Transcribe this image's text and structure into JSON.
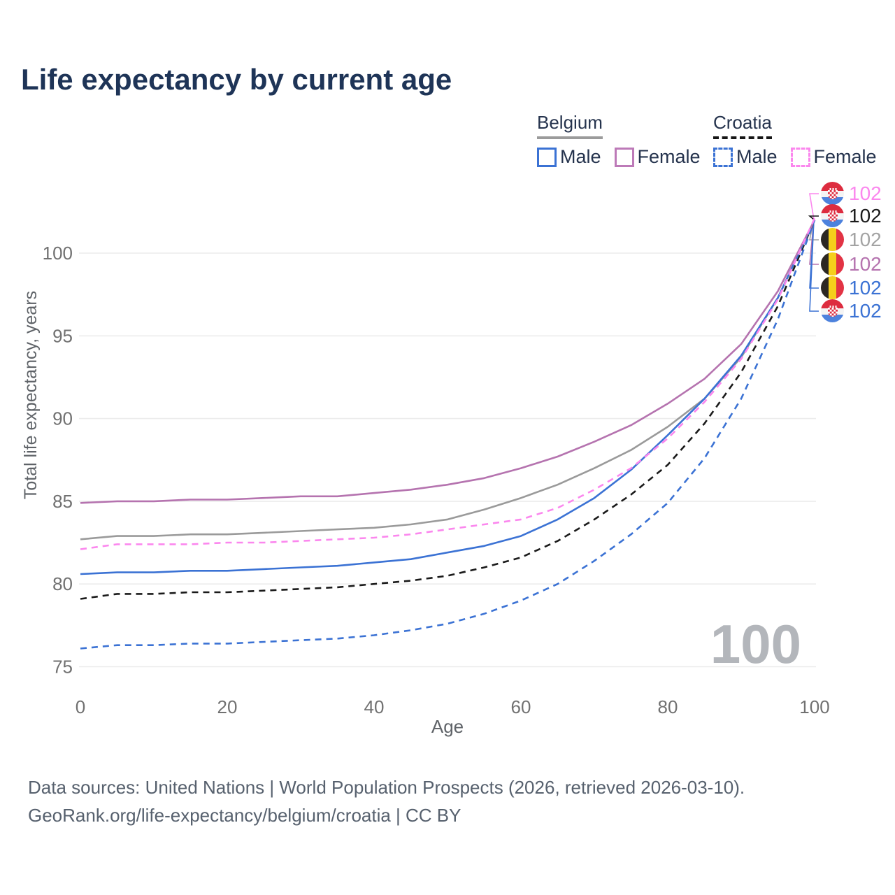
{
  "title": "Life expectancy by current age",
  "watermark": "100",
  "legend": {
    "groups": [
      {
        "label": "Belgium",
        "line_style": "solid",
        "underline_color": "#9b9b9b",
        "items": [
          {
            "label": "Male",
            "color": "#3b72d4"
          },
          {
            "label": "Female",
            "color": "#bd7ab8"
          }
        ]
      },
      {
        "label": "Croatia",
        "line_style": "dashed",
        "underline_color": "#161616",
        "items": [
          {
            "label": "Male",
            "color": "#3b72d4"
          },
          {
            "label": "Female",
            "color": "#fb87ee"
          }
        ]
      }
    ]
  },
  "axes": {
    "y_title": "Total life expectancy, years",
    "x_title": "Age",
    "y_ticks": [
      75,
      80,
      85,
      90,
      95,
      100
    ],
    "x_ticks": [
      0,
      20,
      40,
      60,
      80,
      100
    ]
  },
  "end_labels": [
    {
      "value": "102",
      "flag": "croatia",
      "series": "Croatia Female",
      "color": "#fb87ee"
    },
    {
      "value": "102",
      "flag": "croatia",
      "series": "Croatia Both sexes",
      "color": "#1a1a1a"
    },
    {
      "value": "102",
      "flag": "belgium",
      "series": "Belgium Both sexes",
      "color": "#a3a3a3"
    },
    {
      "value": "102",
      "flag": "belgium",
      "series": "Belgium Female",
      "color": "#b573af"
    },
    {
      "value": "102",
      "flag": "belgium",
      "series": "Belgium Male",
      "color": "#3b72d4"
    },
    {
      "value": "102",
      "flag": "croatia",
      "series": "Croatia Male",
      "color": "#3b72d4"
    }
  ],
  "footer": {
    "line1": "Data sources: United Nations | World Population Prospects (2026, retrieved 2026-03-10).",
    "line2": "GeoRank.org/life-expectancy/belgium/croatia | CC BY"
  },
  "chart_data": {
    "type": "line",
    "title": "Life expectancy by current age",
    "xlabel": "Age",
    "ylabel": "Total life expectancy, years",
    "xlim": [
      0,
      100
    ],
    "ylim": [
      75,
      103
    ],
    "grid": "horizontal",
    "legend_position": "top-right",
    "x": [
      0,
      5,
      10,
      15,
      20,
      25,
      30,
      35,
      40,
      45,
      50,
      55,
      60,
      65,
      70,
      75,
      80,
      85,
      90,
      95,
      100
    ],
    "series": [
      {
        "name": "Belgium Both sexes",
        "country": "Belgium",
        "sex": "all",
        "color": "#9a9a9a",
        "dashed": false,
        "values": [
          82.7,
          82.9,
          82.9,
          83.0,
          83.0,
          83.1,
          83.2,
          83.3,
          83.4,
          83.6,
          83.9,
          84.5,
          85.2,
          86.0,
          87.0,
          88.1,
          89.5,
          91.2,
          93.7,
          97.3,
          102.0
        ]
      },
      {
        "name": "Croatia Both sexes",
        "country": "Croatia",
        "sex": "all",
        "color": "#1a1a1a",
        "dashed": true,
        "values": [
          79.1,
          79.4,
          79.4,
          79.5,
          79.5,
          79.6,
          79.7,
          79.8,
          80.0,
          80.2,
          80.5,
          81.0,
          81.6,
          82.6,
          83.9,
          85.4,
          87.2,
          89.7,
          92.8,
          96.8,
          102.0
        ]
      },
      {
        "name": "Belgium Male",
        "country": "Belgium",
        "sex": "male",
        "color": "#3b72d4",
        "dashed": false,
        "values": [
          80.6,
          80.7,
          80.7,
          80.8,
          80.8,
          80.9,
          81.0,
          81.1,
          81.3,
          81.5,
          81.9,
          82.3,
          82.9,
          83.9,
          85.2,
          86.9,
          89.0,
          91.2,
          93.8,
          97.3,
          102.0
        ]
      },
      {
        "name": "Belgium Female",
        "country": "Belgium",
        "sex": "female",
        "color": "#b573af",
        "dashed": false,
        "values": [
          84.9,
          85.0,
          85.0,
          85.1,
          85.1,
          85.2,
          85.3,
          85.3,
          85.5,
          85.7,
          86.0,
          86.4,
          87.0,
          87.7,
          88.6,
          89.6,
          90.9,
          92.4,
          94.5,
          97.7,
          102.0
        ]
      },
      {
        "name": "Croatia Male",
        "country": "Croatia",
        "sex": "male",
        "color": "#3b72d4",
        "dashed": true,
        "values": [
          76.1,
          76.3,
          76.3,
          76.4,
          76.4,
          76.5,
          76.6,
          76.7,
          76.9,
          77.2,
          77.6,
          78.2,
          79.0,
          80.0,
          81.4,
          83.0,
          84.9,
          87.6,
          91.2,
          96.0,
          102.0
        ]
      },
      {
        "name": "Croatia Female",
        "country": "Croatia",
        "sex": "female",
        "color": "#fb87ee",
        "dashed": true,
        "values": [
          82.1,
          82.4,
          82.4,
          82.4,
          82.5,
          82.5,
          82.6,
          82.7,
          82.8,
          83.0,
          83.3,
          83.6,
          83.9,
          84.6,
          85.7,
          87.0,
          88.8,
          91.0,
          93.6,
          97.2,
          102.1
        ]
      }
    ]
  }
}
